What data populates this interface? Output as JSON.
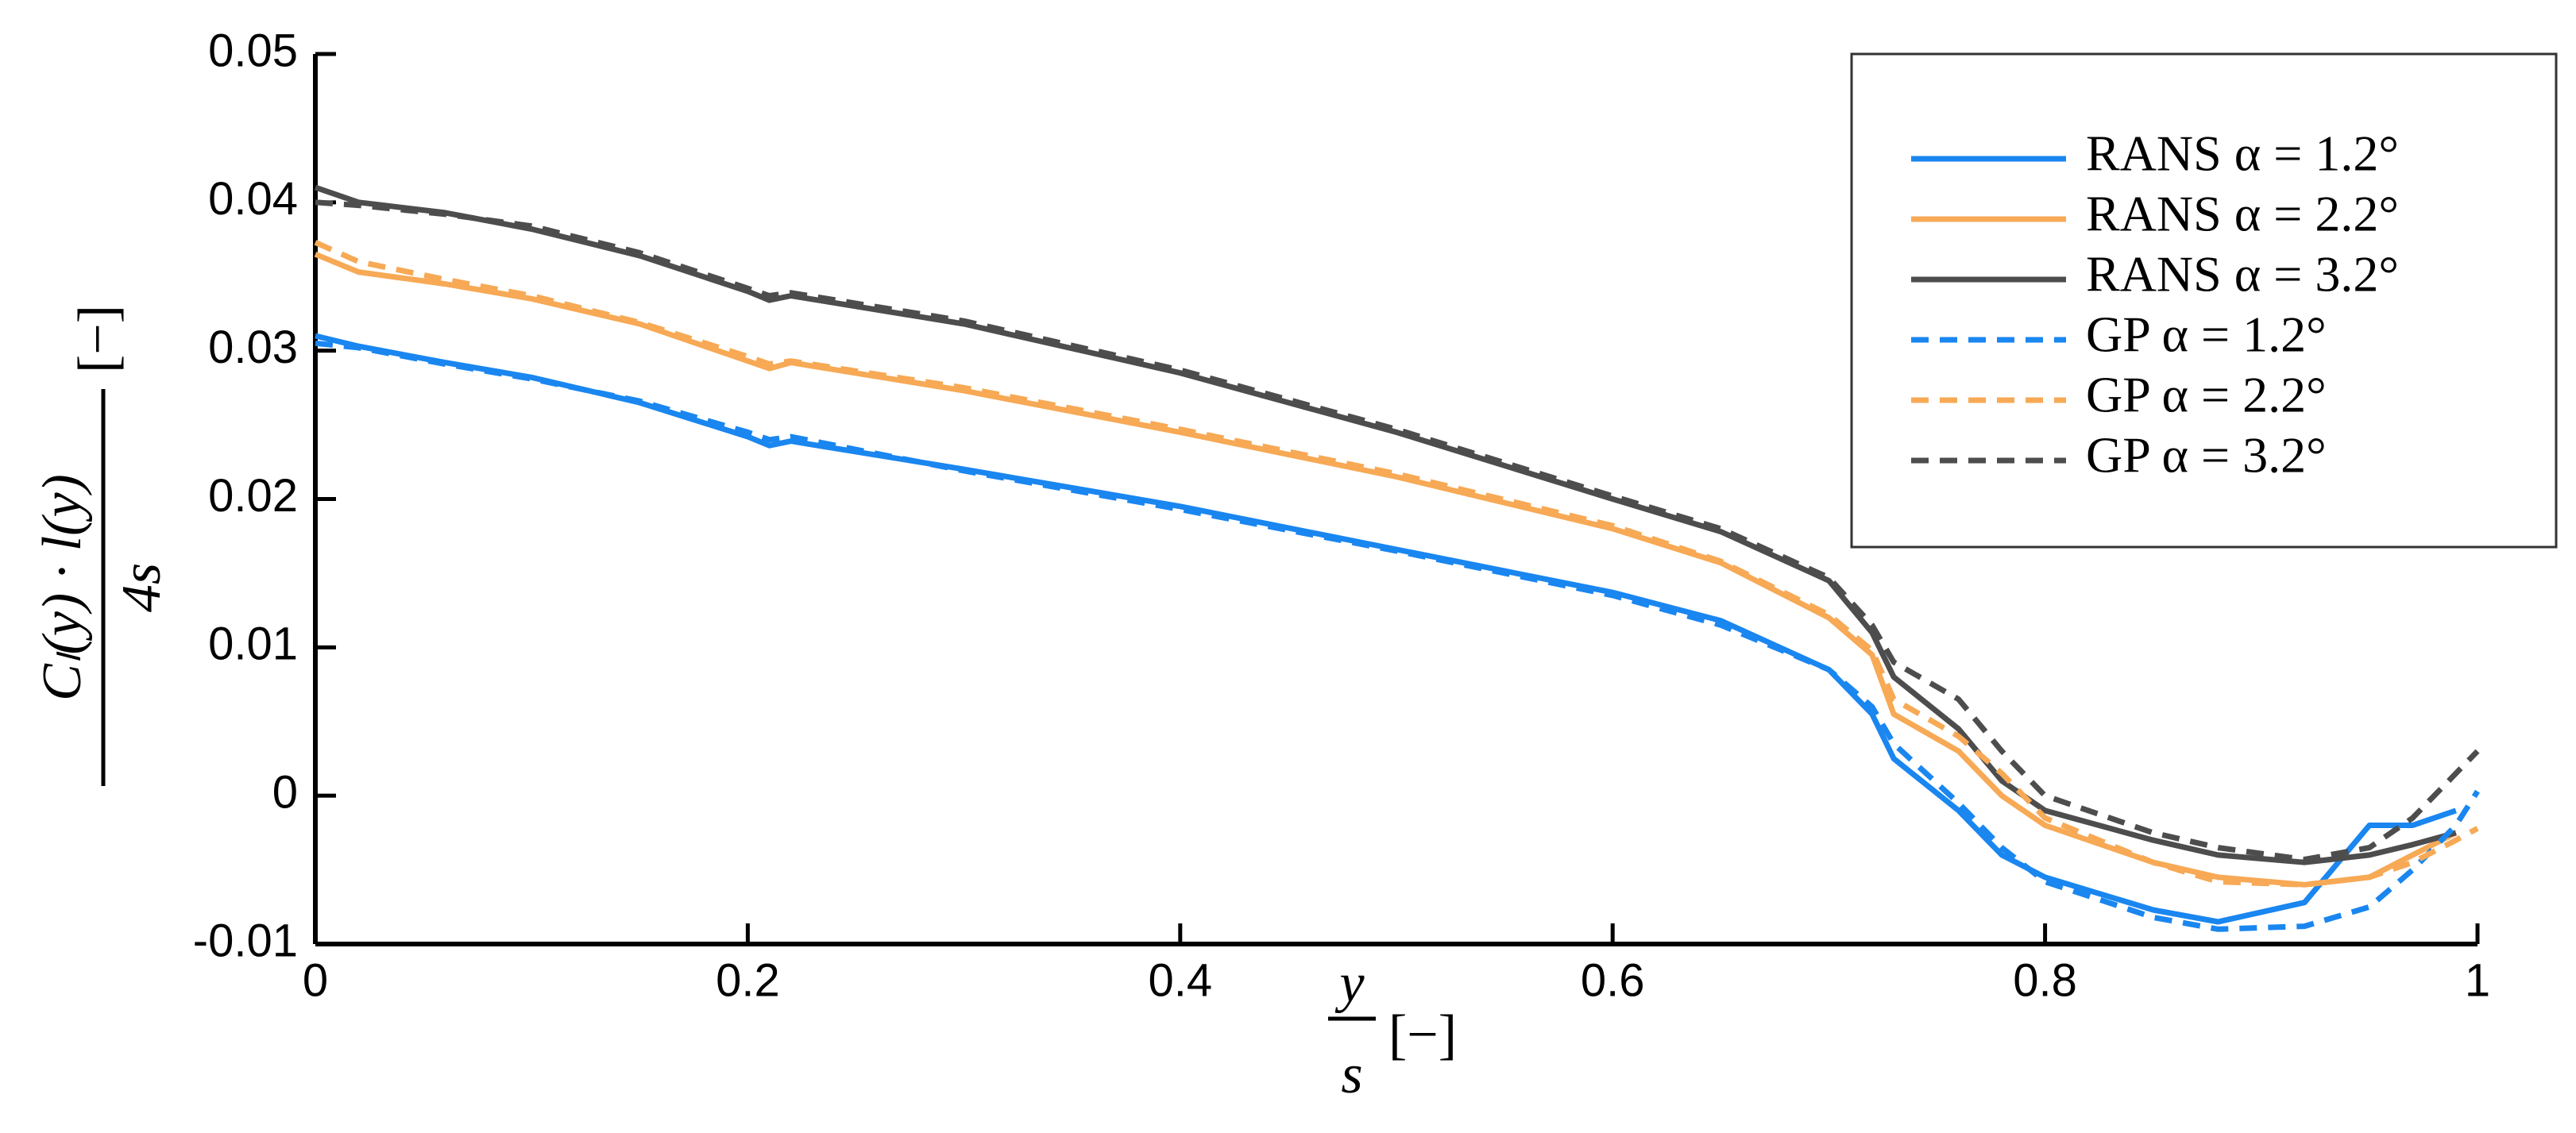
{
  "chart_data": {
    "type": "line",
    "ylabel": {
      "numerator": "Cₗ(y) · l(y)",
      "denominator": "4s",
      "unit": "[−]"
    },
    "xlabel": {
      "numerator": "y",
      "denominator": "s",
      "unit": "[−]"
    },
    "x": [
      0,
      0.02,
      0.06,
      0.1,
      0.15,
      0.2,
      0.21,
      0.22,
      0.3,
      0.4,
      0.5,
      0.6,
      0.65,
      0.7,
      0.72,
      0.73,
      0.76,
      0.78,
      0.8,
      0.85,
      0.88,
      0.92,
      0.95,
      0.97,
      0.99,
      1.0
    ],
    "series": [
      {
        "name": "RANS α = 1.2°",
        "color": "#1a86f0",
        "dash": "solid",
        "values": [
          0.031,
          0.0303,
          0.0292,
          0.0282,
          0.0265,
          0.0242,
          0.0236,
          0.0239,
          0.022,
          0.0195,
          0.0166,
          0.0137,
          0.0118,
          0.0085,
          0.0055,
          0.0025,
          -0.001,
          -0.004,
          -0.0055,
          -0.0077,
          -0.0085,
          -0.0072,
          -0.002,
          -0.002,
          -0.001,
          null
        ]
      },
      {
        "name": "RANS α = 2.2°",
        "color": "#f7a955",
        "dash": "solid",
        "values": [
          0.0365,
          0.0353,
          0.0345,
          0.0335,
          0.0318,
          0.0293,
          0.0288,
          0.0292,
          0.0273,
          0.0245,
          0.0215,
          0.018,
          0.0157,
          0.012,
          0.0095,
          0.0055,
          0.003,
          0.0,
          -0.002,
          -0.0045,
          -0.0055,
          -0.006,
          -0.0055,
          -0.004,
          -0.0025,
          null
        ]
      },
      {
        "name": "RANS α = 3.2°",
        "color": "#4d4d4d",
        "dash": "solid",
        "values": [
          0.041,
          0.04,
          0.0393,
          0.0382,
          0.0364,
          0.034,
          0.0334,
          0.0337,
          0.0318,
          0.0285,
          0.0245,
          0.02,
          0.0178,
          0.0145,
          0.011,
          0.008,
          0.0045,
          0.001,
          -0.001,
          -0.003,
          -0.004,
          -0.0045,
          -0.004,
          -0.0033,
          -0.0025,
          null
        ]
      },
      {
        "name": "GP α = 1.2°",
        "color": "#1a86f0",
        "dash": "dashed",
        "values": [
          0.0305,
          0.0302,
          0.0291,
          0.0281,
          0.0266,
          0.0245,
          0.024,
          0.0242,
          0.0219,
          0.0193,
          0.0165,
          0.0135,
          0.0115,
          0.0085,
          0.006,
          0.0035,
          -0.0005,
          -0.0035,
          -0.0058,
          -0.0082,
          -0.009,
          -0.0088,
          -0.0075,
          -0.005,
          -0.002,
          0.0003
        ]
      },
      {
        "name": "GP α = 2.2°",
        "color": "#f7a955",
        "dash": "dashed",
        "values": [
          0.0373,
          0.036,
          0.0348,
          0.0337,
          0.0319,
          0.0296,
          0.0291,
          0.0293,
          0.0275,
          0.0247,
          0.0217,
          0.0182,
          0.0158,
          0.0122,
          0.0098,
          0.0065,
          0.004,
          0.0015,
          -0.0015,
          -0.0045,
          -0.0058,
          -0.006,
          -0.0055,
          -0.0045,
          -0.003,
          -0.0022
        ]
      },
      {
        "name": "GP α = 3.2°",
        "color": "#4d4d4d",
        "dash": "dashed",
        "values": [
          0.04,
          0.0398,
          0.0392,
          0.0384,
          0.0366,
          0.0342,
          0.0337,
          0.0339,
          0.032,
          0.0287,
          0.0247,
          0.0202,
          0.018,
          0.0147,
          0.0115,
          0.009,
          0.0065,
          0.003,
          0.0,
          -0.0025,
          -0.0035,
          -0.0043,
          -0.0035,
          -0.0015,
          0.0015,
          0.003
        ]
      }
    ],
    "xlim": [
      0,
      1
    ],
    "xticks": [
      0,
      0.2,
      0.4,
      0.6,
      0.8,
      1
    ],
    "ylim": [
      -0.01,
      0.05
    ],
    "yticks": [
      -0.01,
      0,
      0.01,
      0.02,
      0.03,
      0.04,
      0.05
    ],
    "legend": "upper-right",
    "grid": false
  }
}
